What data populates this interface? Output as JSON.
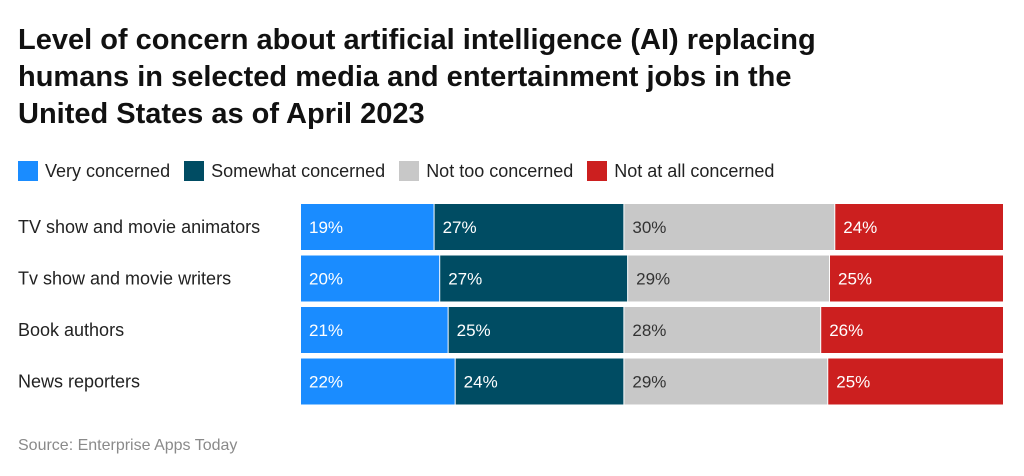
{
  "chart_data": {
    "type": "bar",
    "orientation": "horizontal",
    "stacked": true,
    "title_lines": [
      "Level of concern about artificial intelligence (AI) replacing",
      "humans in selected media and entertainment jobs in the",
      "United States as of April 2023"
    ],
    "categories": [
      "TV show and movie animators",
      "Tv show and movie writers",
      "Book authors",
      "News reporters"
    ],
    "series": [
      {
        "name": "Very concerned",
        "color": "#1a8cff",
        "values": [
          19,
          20,
          21,
          22
        ],
        "labels": [
          "19%",
          "20%",
          "21%",
          "22%"
        ]
      },
      {
        "name": "Somewhat concerned",
        "color": "#004c63",
        "values": [
          27,
          27,
          25,
          24
        ],
        "labels": [
          "27%",
          "27%",
          "25%",
          "24%"
        ]
      },
      {
        "name": "Not too concerned",
        "color": "#c8c8c8",
        "values": [
          30,
          29,
          28,
          29
        ],
        "labels": [
          "30%",
          "29%",
          "28%",
          "29%"
        ]
      },
      {
        "name": "Not at all concerned",
        "color": "#cc1f1f",
        "values": [
          24,
          25,
          26,
          25
        ],
        "labels": [
          "24%",
          "25%",
          "26%",
          "25%"
        ]
      }
    ],
    "legend_position": "top-left",
    "grid": false,
    "source": "Source: Enterprise Apps Today"
  }
}
